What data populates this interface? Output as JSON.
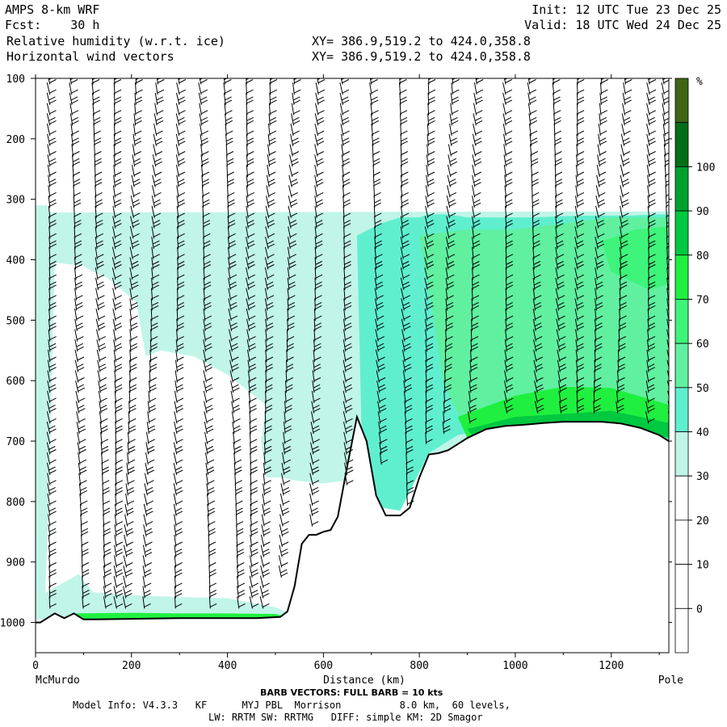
{
  "header": {
    "model": "AMPS 8-km WRF",
    "init": "Init: 12 UTC Tue 23 Dec 25",
    "fcst": "Fcst:    30 h",
    "valid": "Valid: 18 UTC Wed 24 Dec 25",
    "field1": "Relative humidity (w.r.t. ice)",
    "field2": "Horizontal wind vectors",
    "xy1": "XY= 386.9,519.2 to 424.0,358.8",
    "xy2": "XY= 386.9,519.2 to 424.0,358.8"
  },
  "chart_data": {
    "type": "heatmap",
    "xlabel": "Distance (km)",
    "x_start_label": "McMurdo",
    "x_end_label": "Pole",
    "xlim": [
      0,
      1320
    ],
    "xticks": [
      0,
      200,
      400,
      600,
      800,
      1000,
      1200
    ],
    "ylim_hpa": [
      100,
      1050
    ],
    "yticks": [
      100,
      200,
      300,
      400,
      500,
      600,
      700,
      800,
      900,
      1000
    ],
    "colorbar": {
      "unit": "%",
      "levels": [
        0,
        10,
        20,
        30,
        40,
        50,
        60,
        70,
        80,
        90,
        100
      ],
      "colors": [
        "#ffffff",
        "#ffffff",
        "#ffffff",
        "#ffffff",
        "#c0f5e8",
        "#5fefcf",
        "#60f0a0",
        "#3ff47a",
        "#1ff03f",
        "#00c840",
        "#00a030",
        "#006f17",
        "#3e6614"
      ],
      "bins": [
        [
          "-10",
          "0"
        ],
        [
          "0",
          "10"
        ],
        [
          "10",
          "20"
        ],
        [
          "20",
          "30"
        ],
        [
          "30",
          "40"
        ],
        [
          "40",
          "50"
        ],
        [
          "50",
          "60"
        ],
        [
          "60",
          "70"
        ],
        [
          "70",
          "80"
        ],
        [
          "80",
          "90"
        ],
        [
          "90",
          "100"
        ],
        [
          "100",
          "110"
        ],
        [
          "110",
          "120"
        ]
      ]
    },
    "terrain_hpa": {
      "x": [
        0,
        10,
        20,
        40,
        60,
        80,
        100,
        120,
        200,
        300,
        400,
        460,
        510,
        525,
        540,
        555,
        570,
        585,
        600,
        615,
        630,
        650,
        670,
        690,
        710,
        730,
        760,
        780,
        800,
        820,
        840,
        860,
        880,
        900,
        940,
        980,
        1020,
        1060,
        1100,
        1140,
        1180,
        1220,
        1260,
        1300,
        1320
      ],
      "p": [
        1000,
        1000,
        995,
        985,
        993,
        985,
        995,
        995,
        994,
        993,
        993,
        993,
        991,
        982,
        940,
        870,
        855,
        855,
        850,
        847,
        825,
        740,
        660,
        700,
        790,
        823,
        823,
        810,
        760,
        722,
        720,
        715,
        705,
        695,
        680,
        675,
        673,
        670,
        668,
        668,
        668,
        671,
        678,
        690,
        700
      ]
    },
    "rh_regions": [
      {
        "level": 35,
        "x": [
          0,
          25,
          30,
          1320,
          1320,
          900,
          600,
          540,
          510,
          480,
          470,
          480,
          400,
          330,
          260,
          230,
          210,
          180,
          150,
          120,
          100,
          40,
          30,
          20,
          0
        ],
        "p": [
          310,
          310,
          322,
          320,
          680,
          740,
          770,
          765,
          760,
          760,
          700,
          640,
          590,
          560,
          550,
          560,
          470,
          450,
          430,
          420,
          410,
          405,
          730,
          960,
          990
        ]
      },
      {
        "level": 35,
        "x": [
          0,
          90,
          120,
          200,
          300,
          400,
          500,
          530,
          530,
          400,
          200,
          0
        ],
        "p": [
          960,
          920,
          950,
          955,
          958,
          960,
          975,
          985,
          995,
          995,
          995,
          995
        ]
      },
      {
        "level": 45,
        "x": [
          670,
          720,
          760,
          800,
          820,
          860,
          900,
          960,
          1040,
          1100,
          1160,
          1240,
          1300,
          1320,
          1320,
          1200,
          1000,
          880,
          820,
          760,
          720,
          680
        ],
        "p": [
          360,
          340,
          330,
          330,
          325,
          325,
          330,
          330,
          330,
          328,
          327,
          327,
          325,
          325,
          700,
          665,
          670,
          690,
          720,
          815,
          810,
          700
        ]
      },
      {
        "level": 55,
        "x": [
          800,
          900,
          1000,
          1100,
          1200,
          1320,
          1320,
          1200,
          1100,
          1000,
          900,
          850,
          820
        ],
        "p": [
          360,
          350,
          350,
          340,
          330,
          330,
          690,
          670,
          668,
          672,
          690,
          600,
          450
        ]
      },
      {
        "level": 65,
        "x": [
          1180,
          1250,
          1320,
          1320,
          1280,
          1200
        ],
        "p": [
          370,
          350,
          345,
          440,
          450,
          420
        ]
      },
      {
        "level": 75,
        "x": [
          880,
          1000,
          1100,
          1200,
          1320,
          1320,
          1200,
          1100,
          1000,
          900
        ],
        "p": [
          660,
          625,
          610,
          612,
          640,
          690,
          670,
          668,
          672,
          695
        ]
      },
      {
        "level": 85,
        "x": [
          900,
          1000,
          1100,
          1200,
          1320,
          1320,
          1200,
          1100,
          1000,
          920
        ],
        "p": [
          680,
          660,
          655,
          650,
          670,
          695,
          672,
          668,
          675,
          700
        ]
      },
      {
        "level": 75,
        "x": [
          80,
          200,
          300,
          400,
          500,
          520,
          520,
          400,
          200,
          80
        ],
        "p": [
          985,
          984,
          985,
          985,
          986,
          990,
          994,
          994,
          994,
          994
        ]
      }
    ],
    "barb_columns_km": [
      30,
      75,
      120,
      165,
      210,
      255,
      300,
      345,
      395,
      440,
      490,
      540,
      590,
      640,
      700,
      760,
      820,
      870,
      920,
      980,
      1030,
      1080,
      1130,
      1180,
      1230,
      1280,
      1310
    ]
  },
  "footer": {
    "barb_note": "BARB VECTORS:  FULL BARB = 10 kts",
    "model_info": "Model Info: V4.3.3   KF      MYJ PBL  Morrison          8.0 km,  60 levels,",
    "model_info2": "LW: RRTM SW: RRTMG   DIFF: simple KM: 2D Smagor"
  }
}
